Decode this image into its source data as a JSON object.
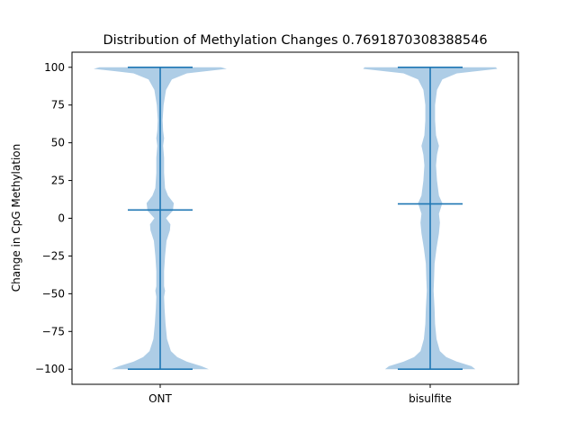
{
  "chart_data": {
    "type": "violin",
    "title": "Distribution of Methylation Changes 0.7691870308388546",
    "xlabel": "",
    "ylabel": "Change in CpG Methylation",
    "ylim": [
      -110,
      110
    ],
    "yticks": [
      100,
      75,
      50,
      25,
      0,
      -25,
      -50,
      -75,
      -100
    ],
    "categories": [
      "ONT",
      "bisulfite"
    ],
    "colors": {
      "body": "#aecde6",
      "lines": "#1f77b4"
    },
    "series": [
      {
        "category": "ONT",
        "min": -100,
        "max": 100,
        "median": 5.5,
        "density": [
          [
            -100,
            1.0
          ],
          [
            -98,
            0.85
          ],
          [
            -95,
            0.55
          ],
          [
            -92,
            0.35
          ],
          [
            -88,
            0.22
          ],
          [
            -80,
            0.14
          ],
          [
            -70,
            0.11
          ],
          [
            -60,
            0.09
          ],
          [
            -52,
            0.08
          ],
          [
            -48,
            0.1
          ],
          [
            -45,
            0.08
          ],
          [
            -35,
            0.08
          ],
          [
            -25,
            0.1
          ],
          [
            -15,
            0.13
          ],
          [
            -8,
            0.2
          ],
          [
            -4,
            0.21
          ],
          [
            0,
            0.12
          ],
          [
            5,
            0.26
          ],
          [
            10,
            0.28
          ],
          [
            15,
            0.16
          ],
          [
            20,
            0.1
          ],
          [
            30,
            0.08
          ],
          [
            40,
            0.08
          ],
          [
            48,
            0.06
          ],
          [
            53,
            0.08
          ],
          [
            58,
            0.06
          ],
          [
            65,
            0.05
          ],
          [
            75,
            0.07
          ],
          [
            85,
            0.12
          ],
          [
            92,
            0.24
          ],
          [
            96,
            0.55
          ],
          [
            99,
            1.37
          ],
          [
            100,
            1.25
          ]
        ]
      },
      {
        "category": "bisulfite",
        "min": -100,
        "max": 100,
        "median": 9.5,
        "density": [
          [
            -100,
            0.93
          ],
          [
            -98,
            0.85
          ],
          [
            -95,
            0.55
          ],
          [
            -92,
            0.33
          ],
          [
            -88,
            0.2
          ],
          [
            -80,
            0.13
          ],
          [
            -70,
            0.1
          ],
          [
            -60,
            0.09
          ],
          [
            -48,
            0.07
          ],
          [
            -40,
            0.08
          ],
          [
            -30,
            0.09
          ],
          [
            -20,
            0.13
          ],
          [
            -10,
            0.18
          ],
          [
            -3,
            0.2
          ],
          [
            3,
            0.18
          ],
          [
            10,
            0.25
          ],
          [
            15,
            0.18
          ],
          [
            25,
            0.14
          ],
          [
            35,
            0.12
          ],
          [
            42,
            0.14
          ],
          [
            48,
            0.18
          ],
          [
            55,
            0.12
          ],
          [
            65,
            0.1
          ],
          [
            75,
            0.1
          ],
          [
            85,
            0.14
          ],
          [
            92,
            0.25
          ],
          [
            96,
            0.55
          ],
          [
            99,
            1.38
          ],
          [
            100,
            1.35
          ]
        ]
      }
    ]
  }
}
